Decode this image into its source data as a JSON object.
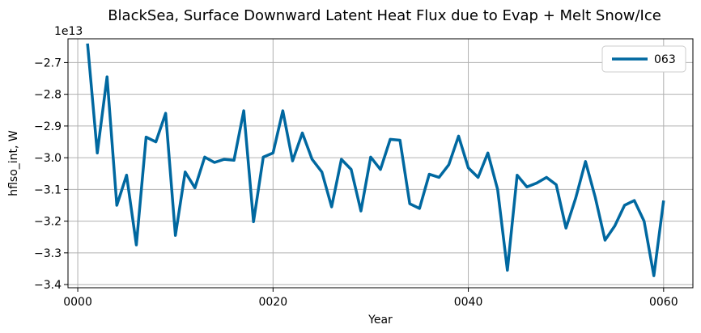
{
  "chart_data": {
    "type": "line",
    "title": "BlackSea, Surface Downward Latent Heat Flux due to Evap + Melt Snow/Ice",
    "xlabel": "Year",
    "ylabel": "hflso_int, W",
    "offset_label": "1e13",
    "xlim": [
      -1,
      63
    ],
    "ylim": [
      -3.41,
      -2.625
    ],
    "x_ticks": [
      0,
      20,
      40,
      60
    ],
    "x_tick_labels": [
      "0000",
      "0020",
      "0040",
      "0060"
    ],
    "y_ticks": [
      -2.7,
      -2.8,
      -2.9,
      -3.0,
      -3.1,
      -3.2,
      -3.3,
      -3.4
    ],
    "y_tick_labels": [
      "−2.7",
      "−2.8",
      "−2.9",
      "−3.0",
      "−3.1",
      "−3.2",
      "−3.3",
      "−3.4"
    ],
    "grid": true,
    "legend_position": "top-right",
    "series": [
      {
        "name": "063",
        "color": "#0068a0",
        "x": [
          1,
          2,
          3,
          4,
          5,
          6,
          7,
          8,
          9,
          10,
          11,
          12,
          13,
          14,
          15,
          16,
          17,
          18,
          19,
          20,
          21,
          22,
          23,
          24,
          25,
          26,
          27,
          28,
          29,
          30,
          31,
          32,
          33,
          34,
          35,
          36,
          37,
          38,
          39,
          40,
          41,
          42,
          43,
          44,
          45,
          46,
          47,
          48,
          49,
          50,
          51,
          52,
          53,
          54,
          55,
          56,
          57,
          58,
          59,
          60
        ],
        "values": [
          -2.64,
          -2.985,
          -2.745,
          -3.15,
          -3.055,
          -3.275,
          -2.935,
          -2.95,
          -2.86,
          -3.245,
          -3.045,
          -3.095,
          -2.998,
          -3.015,
          -3.005,
          -3.008,
          -2.852,
          -3.202,
          -2.998,
          -2.985,
          -2.852,
          -3.01,
          -2.922,
          -3.005,
          -3.045,
          -3.155,
          -3.005,
          -3.037,
          -3.168,
          -2.998,
          -3.037,
          -2.942,
          -2.945,
          -3.145,
          -3.16,
          -3.052,
          -3.062,
          -3.022,
          -2.932,
          -3.032,
          -3.062,
          -2.985,
          -3.1,
          -3.355,
          -3.055,
          -3.092,
          -3.08,
          -3.062,
          -3.085,
          -3.222,
          -3.127,
          -3.012,
          -3.125,
          -3.26,
          -3.215,
          -3.15,
          -3.135,
          -3.2,
          -3.372,
          -3.135
        ]
      }
    ]
  }
}
